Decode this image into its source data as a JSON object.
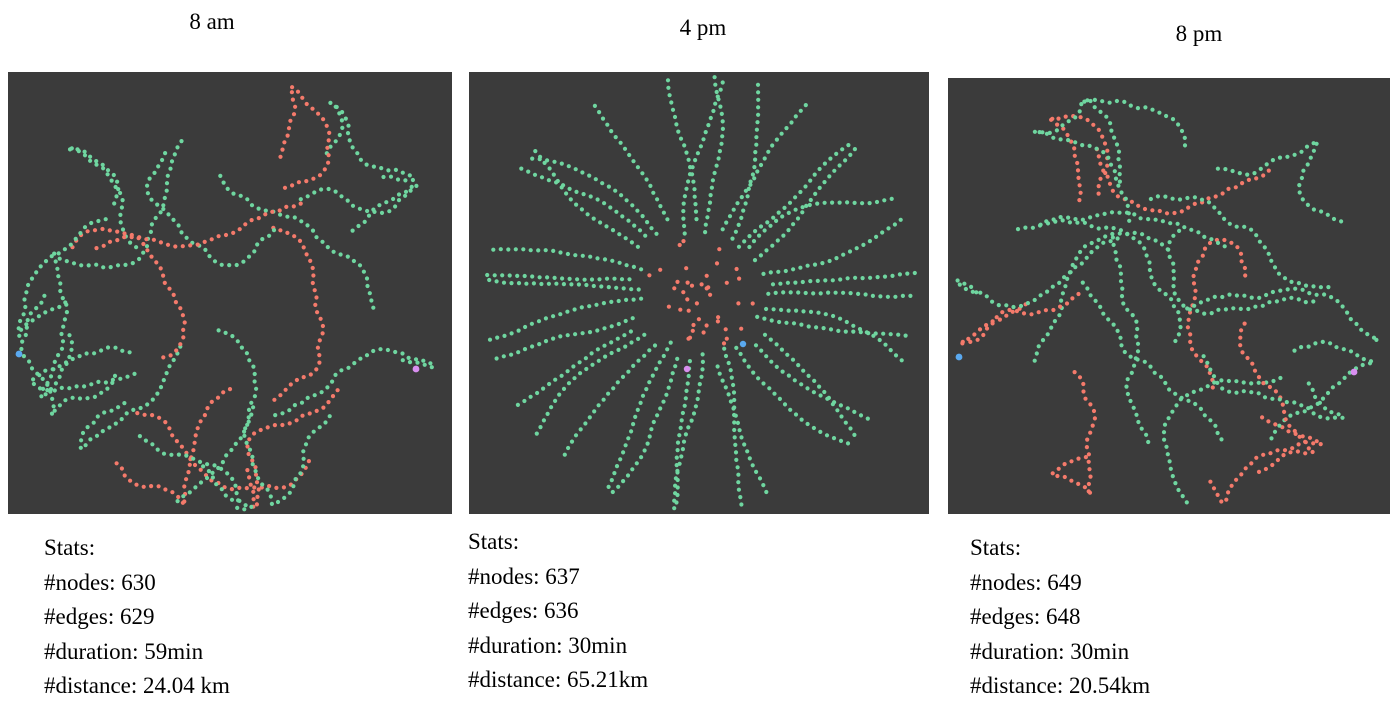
{
  "panels": [
    {
      "time_label": "8 am",
      "stats": {
        "heading": "Stats:",
        "nodes": "#nodes: 630",
        "edges": "#edges: 629",
        "duration": "#duration: 59min",
        "distance": "#distance: 24.04 km"
      },
      "graph": {
        "seed": 11,
        "style": "branchy",
        "red_fraction": 0.42,
        "source_point": "left",
        "target_point": "right"
      }
    },
    {
      "time_label": "4 pm",
      "stats": {
        "heading": "Stats:",
        "nodes": "#nodes: 637",
        "edges": "#edges: 636",
        "duration": "#duration: 30min",
        "distance": "#distance: 65.21km"
      },
      "graph": {
        "seed": 47,
        "style": "radial",
        "red_fraction": 0.08,
        "source_point": "center-right",
        "target_point": "center-bottom"
      }
    },
    {
      "time_label": "8 pm",
      "stats": {
        "heading": "Stats:",
        "nodes": "#nodes: 649",
        "edges": "#edges: 648",
        "duration": "#duration: 30min",
        "distance": "#distance: 20.54km"
      },
      "graph": {
        "seed": 83,
        "style": "branchy",
        "red_fraction": 0.45,
        "source_point": "left",
        "target_point": "right"
      }
    }
  ],
  "colors": {
    "background": "#3b3b3b",
    "node_green": "#6fd6a0",
    "node_red": "#f47a6b",
    "endpoint_blue": "#5aa9f0",
    "endpoint_violet": "#d98ff0"
  }
}
